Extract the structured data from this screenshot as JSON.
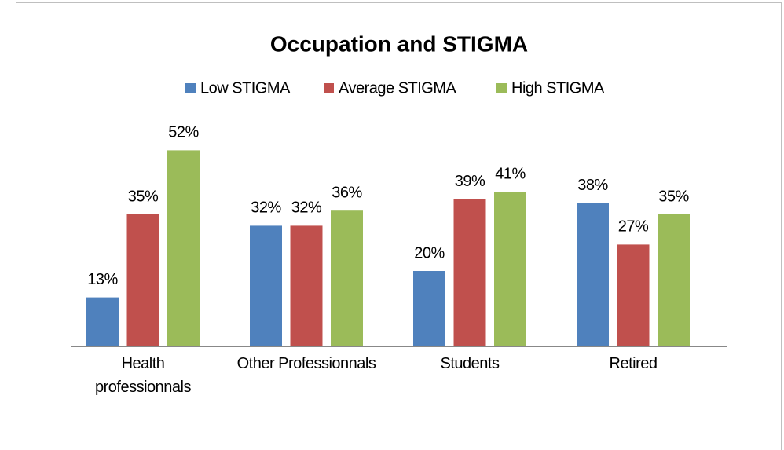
{
  "chart_data": {
    "type": "bar",
    "title": "Occupation and STIGMA",
    "categories": [
      "Health professionnals",
      "Other Professionnals",
      "Students",
      "Retired"
    ],
    "series": [
      {
        "name": "Low STIGMA",
        "color": "#4f81bd",
        "values": [
          13,
          32,
          20,
          38
        ],
        "value_labels": [
          "13%",
          "32%",
          "20%",
          "38%"
        ]
      },
      {
        "name": "Average STIGMA",
        "color": "#c0504d",
        "values": [
          35,
          32,
          39,
          27
        ],
        "value_labels": [
          "35%",
          "32%",
          "39%",
          "27%"
        ]
      },
      {
        "name": "High STIGMA",
        "color": "#9bbb59",
        "values": [
          52,
          36,
          41,
          35
        ],
        "value_labels": [
          "52%",
          "36%",
          "41%",
          "35%"
        ]
      }
    ],
    "legend": "top"
  }
}
